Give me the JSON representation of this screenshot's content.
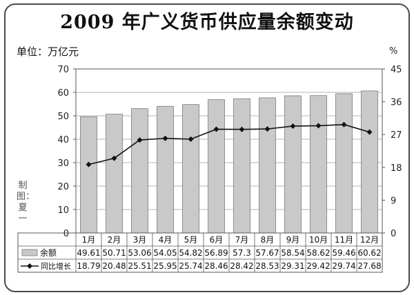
{
  "title": "2009 年广义货币供应量余额变动",
  "unit_label": "单位：万亿元",
  "credit": "制图：夏一",
  "chart_data": {
    "type": "bar",
    "categories": [
      "1月",
      "2月",
      "3月",
      "4月",
      "5月",
      "6月",
      "7月",
      "8月",
      "9月",
      "10月",
      "11月",
      "12月"
    ],
    "y_left": {
      "range": [
        0,
        70
      ],
      "ticks": [
        "0",
        "10",
        "20",
        "30",
        "40",
        "50",
        "60",
        "70"
      ]
    },
    "y_right": {
      "label": "%",
      "range": [
        0,
        45
      ],
      "ticks": [
        "0",
        "9",
        "18",
        "27",
        "36",
        "45"
      ]
    },
    "grid": true,
    "series": [
      {
        "name": "余额",
        "type": "bar",
        "axis": "left",
        "color": "#c9c9c9",
        "values": [
          49.61,
          50.71,
          53.06,
          54.05,
          54.82,
          56.89,
          57.3,
          57.67,
          58.54,
          58.62,
          59.46,
          60.62
        ],
        "labels": [
          "49.61",
          "50.71",
          "53.06",
          "54.05",
          "54.82",
          "56.89",
          "57.3",
          "57.67",
          "58.54",
          "58.62",
          "59.46",
          "60.62"
        ]
      },
      {
        "name": "同比增长",
        "type": "line",
        "axis": "right",
        "color": "#111111",
        "values": [
          18.79,
          20.48,
          25.51,
          25.95,
          25.74,
          28.46,
          28.42,
          28.53,
          29.31,
          29.42,
          29.74,
          27.68
        ],
        "labels": [
          "18.79",
          "20.48",
          "25.51",
          "25.95",
          "25.74",
          "28.46",
          "28.42",
          "28.53",
          "29.31",
          "29.42",
          "29.74",
          "27.68"
        ]
      }
    ]
  }
}
